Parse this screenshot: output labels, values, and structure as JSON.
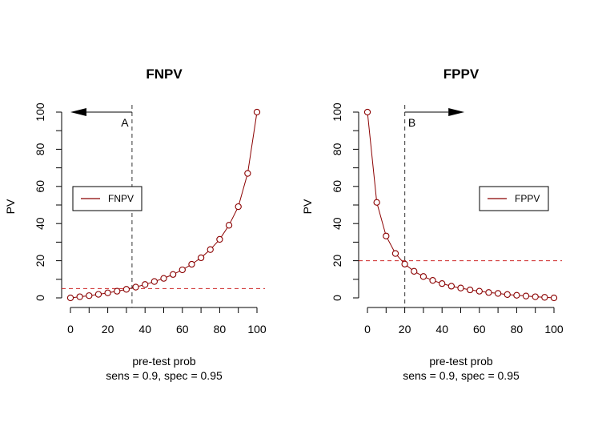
{
  "chart_data": [
    {
      "type": "line",
      "title": "FNPV",
      "xlabel": "pre-test prob",
      "subtitle": "sens =  0.9, spec =  0.95",
      "ylabel": "PV",
      "xlim": [
        0,
        100
      ],
      "ylim": [
        0,
        100
      ],
      "x_ticks": [
        0,
        20,
        40,
        60,
        80,
        100
      ],
      "y_ticks": [
        0,
        20,
        40,
        60,
        80,
        100
      ],
      "legend": "left",
      "series": [
        {
          "name": "FNPV",
          "color": "#8b0000",
          "x": [
            0,
            5,
            10,
            15,
            20,
            25,
            30,
            35,
            40,
            45,
            50,
            55,
            60,
            65,
            70,
            75,
            80,
            85,
            90,
            95,
            100
          ],
          "y": [
            0,
            0.6,
            1.2,
            1.9,
            2.7,
            3.6,
            4.6,
            5.8,
            7.2,
            8.8,
            10.5,
            12.6,
            15.1,
            18.1,
            21.6,
            26,
            31.5,
            39.1,
            49.1,
            67.0,
            100
          ]
        }
      ],
      "vline": {
        "x": 33,
        "color": "#555555"
      },
      "hline": {
        "y": 5,
        "color": "#cd2626"
      },
      "arrow": {
        "from": 33,
        "to": 0,
        "y": 100
      },
      "annotation": {
        "text": "A"
      }
    },
    {
      "type": "line",
      "title": "FPPV",
      "xlabel": "pre-test prob",
      "subtitle": "sens =  0.9, spec =  0.95",
      "ylabel": "PV",
      "xlim": [
        0,
        100
      ],
      "ylim": [
        0,
        100
      ],
      "x_ticks": [
        0,
        20,
        40,
        60,
        80,
        100
      ],
      "y_ticks": [
        0,
        20,
        40,
        60,
        80,
        100
      ],
      "legend": "right",
      "series": [
        {
          "name": "FPPV",
          "color": "#8b0000",
          "x": [
            0,
            5,
            10,
            15,
            20,
            25,
            30,
            35,
            40,
            45,
            50,
            55,
            60,
            65,
            70,
            75,
            80,
            85,
            90,
            95,
            100
          ],
          "y": [
            100,
            51.4,
            33.3,
            23.9,
            18.2,
            14.3,
            11.5,
            9.4,
            7.7,
            6.3,
            5.3,
            4.3,
            3.6,
            2.9,
            2.4,
            1.8,
            1.4,
            1.0,
            0.6,
            0.3,
            0
          ]
        }
      ],
      "vline": {
        "x": 20,
        "color": "#555555"
      },
      "hline": {
        "y": 20,
        "color": "#cd2626"
      },
      "arrow": {
        "from": 20,
        "to": 52,
        "y": 100
      },
      "annotation": {
        "text": "B"
      }
    }
  ]
}
